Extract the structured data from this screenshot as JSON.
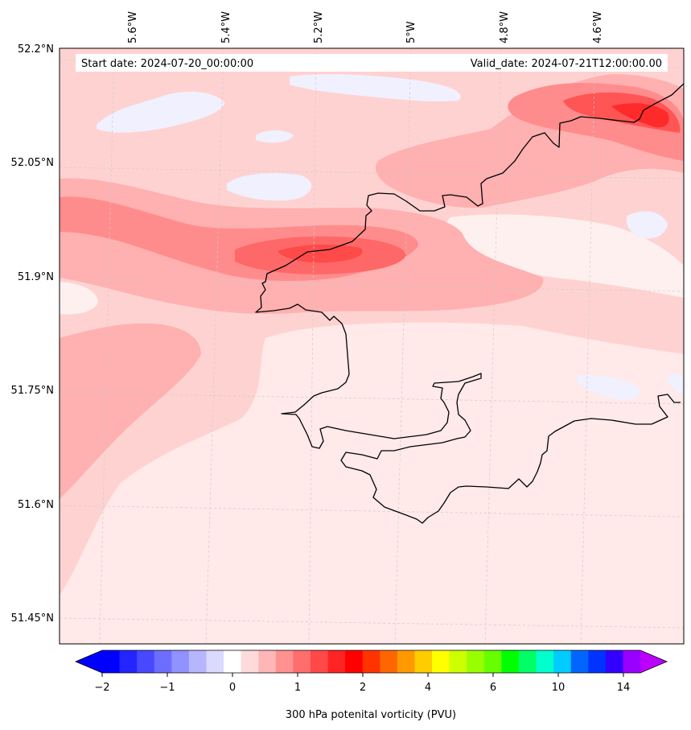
{
  "header": {
    "start_date": "Start date: 2024-07-20_00:00:00",
    "valid_date": "Valid_date: 2024-07-21T12:00:00.00"
  },
  "map": {
    "lon_labels": [
      "5.6°W",
      "5.4°W",
      "5.2°W",
      "5°W",
      "4.8°W",
      "4.6°W"
    ],
    "lat_labels": [
      "52.2°N",
      "52.05°N",
      "51.9°N",
      "51.75°N",
      "51.6°N",
      "51.45°N"
    ],
    "coastline": "black"
  },
  "colorbar": {
    "label": "300 hPa potenital vorticity (PVU)",
    "tick_labels": [
      "−2",
      "−1",
      "0",
      "1",
      "2",
      "4",
      "6",
      "10",
      "14"
    ],
    "colors": [
      "#0000ff",
      "#2424ff",
      "#4848ff",
      "#6d6dff",
      "#9191ff",
      "#b6b6ff",
      "#dadaff",
      "#ffffff",
      "#ffdada",
      "#ffb6b6",
      "#ff9191",
      "#ff6d6d",
      "#ff4848",
      "#ff2424",
      "#ff0000",
      "#ff3300",
      "#ff6600",
      "#ff9900",
      "#ffcc00",
      "#ffff00",
      "#ccff00",
      "#99ff00",
      "#66ff00",
      "#00ff00",
      "#00ff66",
      "#00ffcc",
      "#00ccff",
      "#0066ff",
      "#0033ff",
      "#3300ff",
      "#9900ff"
    ],
    "under_color": "#0000ff",
    "over_color": "#bb00ff"
  }
}
